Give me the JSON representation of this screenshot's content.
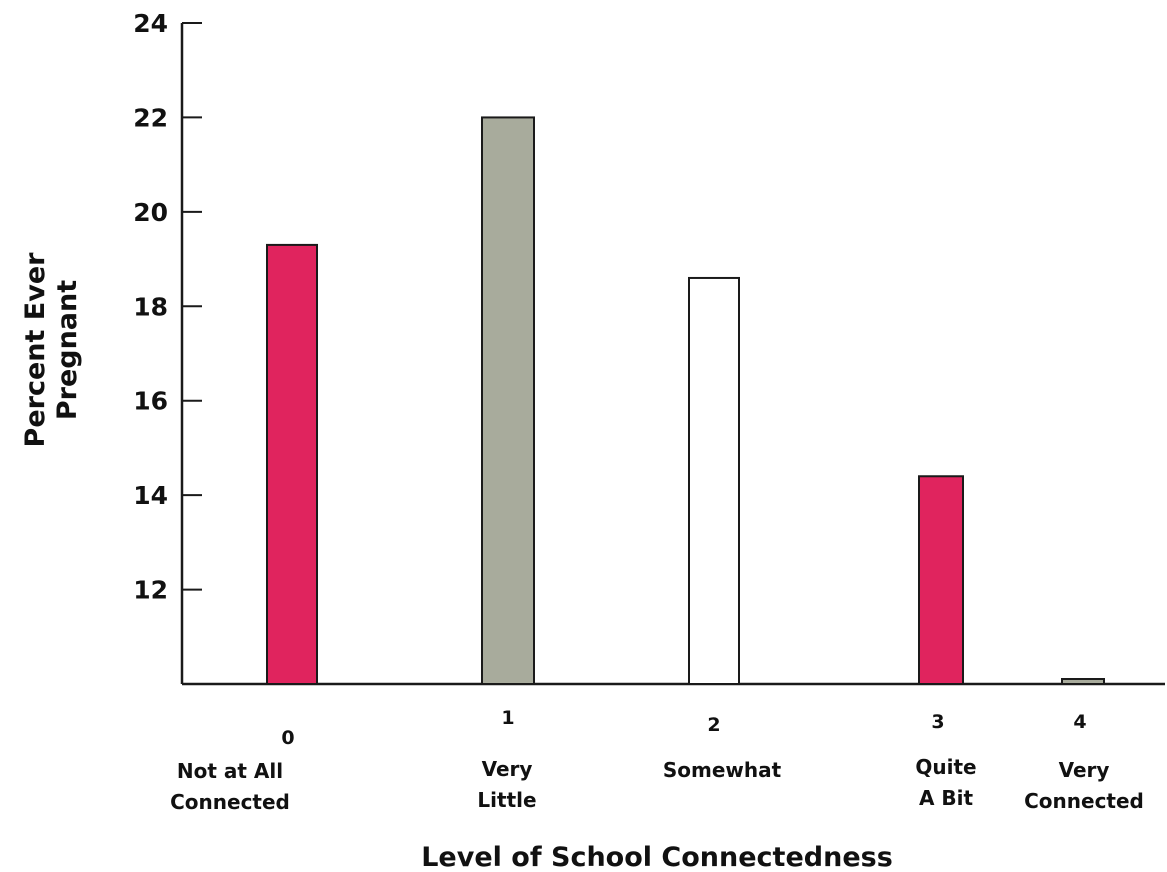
{
  "chart_data": {
    "type": "bar",
    "categories": [
      "0",
      "1",
      "2",
      "3",
      "4"
    ],
    "category_labels": [
      [
        "Not at All",
        "Connected"
      ],
      [
        "Very",
        "Little"
      ],
      [
        "Somewhat"
      ],
      [
        "Quite",
        "A Bit"
      ],
      [
        "Very",
        "Connected"
      ]
    ],
    "values": [
      19.3,
      22.0,
      18.6,
      14.4,
      10.0
    ],
    "colors": [
      "#e0245e",
      "#a8ab9c",
      "#ffffff",
      "#e0245e",
      "#a8ab9c"
    ],
    "xlabel": "Level of School Connectedness",
    "ylabel": [
      "Percent Ever",
      "Pregnant"
    ],
    "ylim": [
      10,
      24
    ],
    "yticks": [
      12,
      14,
      16,
      18,
      20,
      22,
      24
    ],
    "grid": false,
    "legend": "none"
  }
}
